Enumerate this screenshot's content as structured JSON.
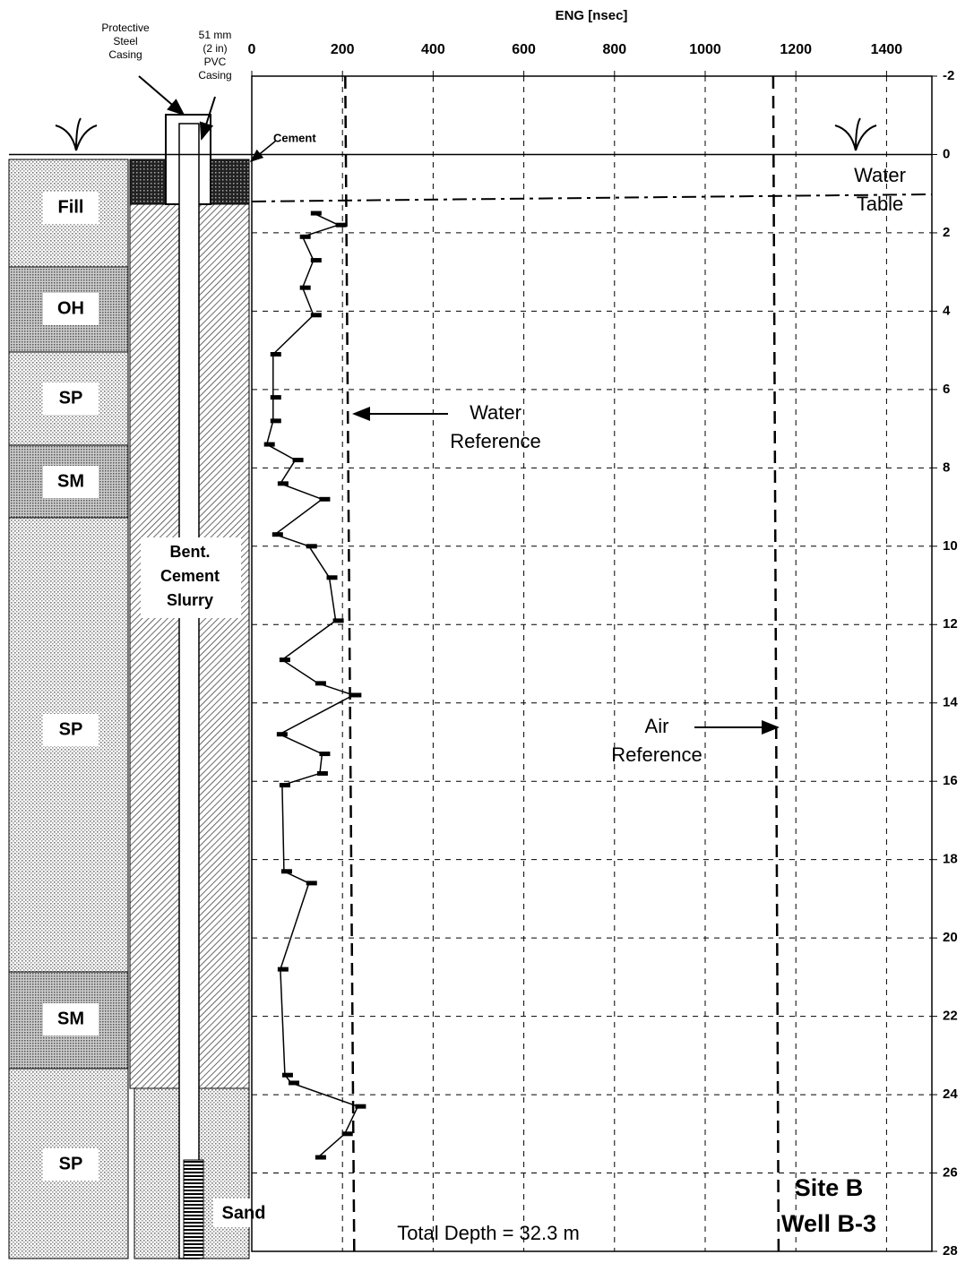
{
  "chart_data": {
    "type": "line",
    "x_label": "ENG [nsec]",
    "x": [
      136,
      191,
      112,
      136,
      112,
      136,
      47,
      47,
      47,
      33,
      96,
      63,
      155,
      51,
      126,
      171,
      185,
      67,
      146,
      224,
      61,
      155,
      150,
      67,
      71,
      126,
      63,
      73,
      87,
      234,
      205,
      146
    ],
    "series": [
      {
        "color": "#000000",
        "values": [
          1.5,
          1.8,
          2.1,
          2.7,
          3.4,
          4.1,
          5.1,
          6.2,
          6.8,
          7.4,
          7.8,
          8.4,
          8.8,
          9.7,
          10.0,
          10.8,
          11.9,
          12.9,
          13.5,
          13.8,
          14.8,
          15.3,
          15.8,
          16.1,
          18.3,
          18.6,
          20.8,
          23.5,
          23.7,
          24.3,
          25.0,
          25.6
        ]
      }
    ],
    "xlim": [
      0,
      1500
    ],
    "xticks": [
      0,
      200,
      400,
      600,
      800,
      1000,
      1200,
      1400
    ],
    "ylim": [
      -2,
      28
    ],
    "yticks": [
      -2,
      0,
      2,
      4,
      6,
      8,
      10,
      12,
      14,
      16,
      18,
      20,
      22,
      24,
      26,
      28
    ],
    "grid": true,
    "water_reference": {
      "value": 218,
      "label": [
        "Water",
        "Reference"
      ]
    },
    "air_reference": {
      "value": 1150,
      "label": [
        "Air",
        "Reference"
      ]
    },
    "water_table": {
      "value": 1.2,
      "label": [
        "Water",
        "Table"
      ]
    },
    "total_depth": "Total Depth = 32.3 m",
    "site": [
      "Site B",
      "Well B-3"
    ]
  },
  "diagram": {
    "protective_casing": [
      "Protective",
      "Steel",
      "Casing"
    ],
    "pvc_casing": [
      "51 mm",
      "(2 in)",
      "PVC",
      "Casing"
    ],
    "cement": "Cement",
    "slurry": [
      "Bent.",
      "Cement",
      "Slurry"
    ],
    "sand": "Sand",
    "layers": [
      "Fill",
      "OH",
      "SP",
      "SM",
      "SP",
      "SM",
      "SP"
    ]
  }
}
